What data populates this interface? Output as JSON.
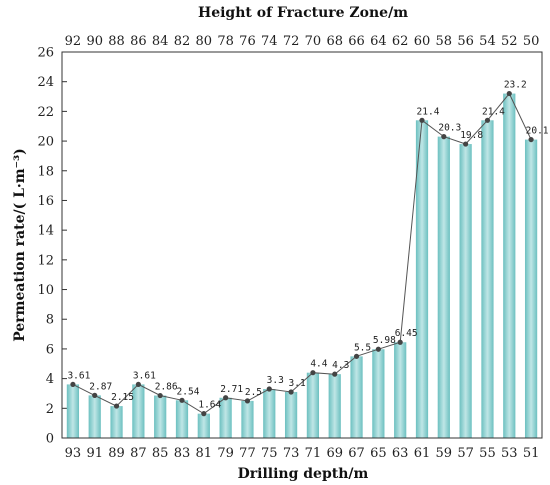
{
  "chart_data": {
    "type": "bar",
    "title": "",
    "x_top_label": "Height of Fracture Zone/m",
    "xlabel": "Drilling depth/m",
    "ylabel": "Permeation rate/( L·m⁻³)",
    "ylim": [
      0,
      26
    ],
    "yticks": [
      0,
      2,
      4,
      6,
      8,
      10,
      12,
      14,
      16,
      18,
      20,
      22,
      24,
      26
    ],
    "categories": [
      "93",
      "91",
      "89",
      "87",
      "85",
      "83",
      "81",
      "79",
      "77",
      "75",
      "73",
      "71",
      "69",
      "67",
      "65",
      "63",
      "61",
      "59",
      "57",
      "55",
      "53",
      "51"
    ],
    "top_categories": [
      "92",
      "90",
      "88",
      "86",
      "84",
      "82",
      "80",
      "78",
      "76",
      "74",
      "72",
      "70",
      "68",
      "66",
      "64",
      "62",
      "60",
      "58",
      "56",
      "54",
      "52",
      "50"
    ],
    "values": [
      3.61,
      2.87,
      2.15,
      3.61,
      2.86,
      2.54,
      1.64,
      2.71,
      2.5,
      3.3,
      3.1,
      4.4,
      4.3,
      5.5,
      5.98,
      6.45,
      21.4,
      20.3,
      19.8,
      21.4,
      23.2,
      20.1
    ],
    "data_labels": [
      "3.61",
      "2.87",
      "2.15",
      "3.61",
      "2.86",
      "2.54",
      "1.64",
      "2.71",
      "2.5",
      "3.3",
      "3.1",
      "4.4",
      "4.3",
      "5.5",
      "5.98",
      "6.45",
      "21.4",
      "20.3",
      "19.8",
      "21.4",
      "23.2",
      "20.1"
    ],
    "bar_color": "#7ec8c8",
    "line_color": "#555555",
    "grid": false
  }
}
